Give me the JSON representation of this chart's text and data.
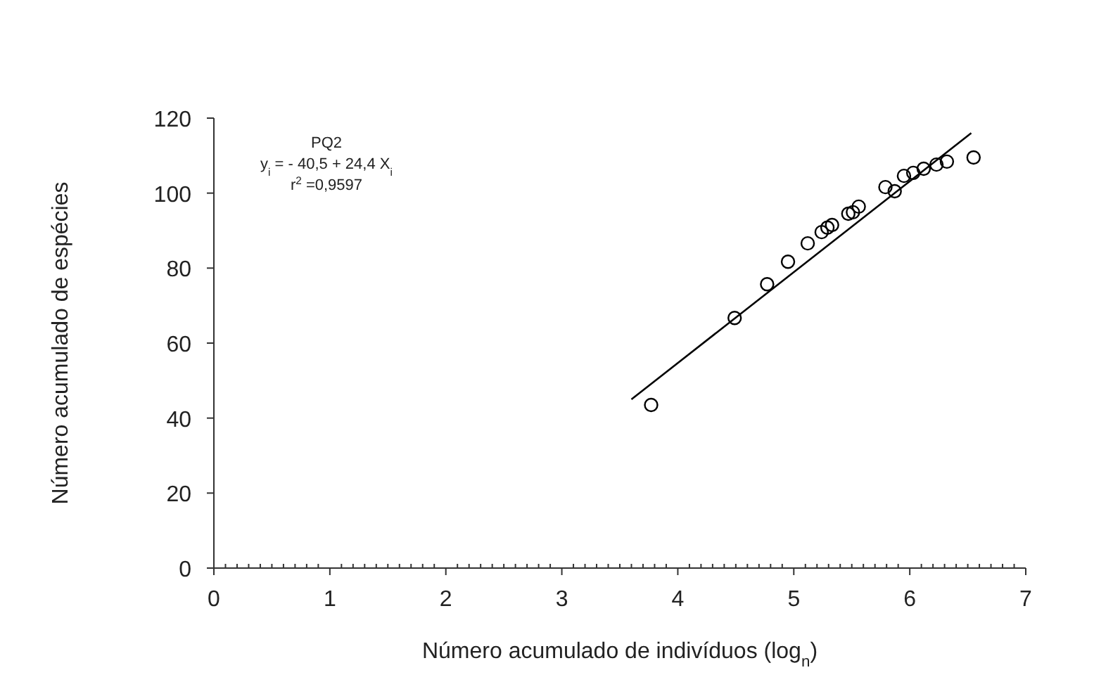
{
  "chart_data": {
    "type": "scatter",
    "xlabel": "Número acumulado de indivíduos (log$_{n}$)",
    "ylabel": "Número acumulado de espécies",
    "annotations": [
      "PQ2",
      "y$_{i}$ = - 40,5 + 24,4 X$_{i}$",
      "r$^{2}$ =0,9597"
    ],
    "grid": false,
    "xlim": [
      0,
      7
    ],
    "ylim": [
      0,
      120
    ],
    "xticks": [
      0,
      {
        "value": 0.1,
        "label": null
      },
      {
        "value": 0.2,
        "label": null
      },
      {
        "value": 0.3,
        "label": null
      },
      {
        "value": 0.4,
        "label": null
      },
      {
        "value": 0.5,
        "label": null
      },
      {
        "value": 0.6,
        "label": null
      },
      {
        "value": 0.7,
        "label": null
      },
      {
        "value": 0.8,
        "label": null
      },
      {
        "value": 0.9,
        "label": null
      },
      1,
      {
        "value": 1.1,
        "label": null
      },
      {
        "value": 1.2,
        "label": null
      },
      {
        "value": 1.3,
        "label": null
      },
      {
        "value": 1.4,
        "label": null
      },
      {
        "value": 1.5,
        "label": null
      },
      {
        "value": 1.6,
        "label": null
      },
      {
        "value": 1.7,
        "label": null
      },
      {
        "value": 1.8,
        "label": null
      },
      {
        "value": 1.9,
        "label": null
      },
      2,
      {
        "value": 2.1,
        "label": null
      },
      {
        "value": 2.2,
        "label": null
      },
      {
        "value": 2.3,
        "label": null
      },
      {
        "value": 2.4,
        "label": null
      },
      {
        "value": 2.5,
        "label": null
      },
      {
        "value": 2.6,
        "label": null
      },
      {
        "value": 2.7,
        "label": null
      },
      {
        "value": 2.8,
        "label": null
      },
      {
        "value": 2.9,
        "label": null
      },
      3,
      {
        "value": 3.1,
        "label": null
      },
      {
        "value": 3.2,
        "label": null
      },
      {
        "value": 3.3,
        "label": null
      },
      {
        "value": 3.4,
        "label": null
      },
      {
        "value": 3.5,
        "label": null
      },
      {
        "value": 3.6,
        "label": null
      },
      {
        "value": 3.7,
        "label": null
      },
      {
        "value": 3.8,
        "label": null
      },
      {
        "value": 3.9,
        "label": null
      },
      4,
      {
        "value": 4.1,
        "label": null
      },
      {
        "value": 4.2,
        "label": null
      },
      {
        "value": 4.3,
        "label": null
      },
      {
        "value": 4.4,
        "label": null
      },
      {
        "value": 4.5,
        "label": null
      },
      {
        "value": 4.6,
        "label": null
      },
      {
        "value": 4.7,
        "label": null
      },
      {
        "value": 4.8,
        "label": null
      },
      {
        "value": 4.9,
        "label": null
      },
      5,
      {
        "value": 5.1,
        "label": null
      },
      {
        "value": 5.2,
        "label": null
      },
      {
        "value": 5.3,
        "label": null
      },
      {
        "value": 5.4,
        "label": null
      },
      {
        "value": 5.5,
        "label": null
      },
      {
        "value": 5.6,
        "label": null
      },
      {
        "value": 5.7,
        "label": null
      },
      {
        "value": 5.8,
        "label": null
      },
      {
        "value": 5.9,
        "label": null
      },
      6,
      {
        "value": 6.1,
        "label": null
      },
      {
        "value": 6.2,
        "label": null
      },
      {
        "value": 6.3,
        "label": null
      },
      {
        "value": 6.4,
        "label": null
      },
      {
        "value": 6.5,
        "label": null
      },
      {
        "value": 6.6,
        "label": null
      },
      {
        "value": 6.7,
        "label": null
      },
      {
        "value": 6.8,
        "label": null
      },
      {
        "value": 6.9,
        "label": null
      },
      7
    ],
    "yticks": [
      0,
      20,
      40,
      60,
      80,
      100,
      120
    ],
    "series": [
      {
        "marker": "circle",
        "color": "#000000",
        "x": [
          3.77,
          4.49,
          4.77,
          4.95,
          5.12,
          5.24,
          5.29,
          5.33,
          5.47,
          5.51,
          5.56,
          5.79,
          5.87,
          5.95,
          6.03,
          6.12,
          6.23,
          6.32,
          6.55
        ],
        "values": [
          43.5,
          66.7,
          75.7,
          81.7,
          86.6,
          89.6,
          90.8,
          91.5,
          94.5,
          94.9,
          96.4,
          101.6,
          100.5,
          104.6,
          105.4,
          106.5,
          107.6,
          108.4,
          109.5
        ]
      },
      {
        "type": "line",
        "color": "#000000",
        "x": [
          3.6,
          6.53
        ],
        "values": [
          45,
          116
        ]
      }
    ]
  }
}
